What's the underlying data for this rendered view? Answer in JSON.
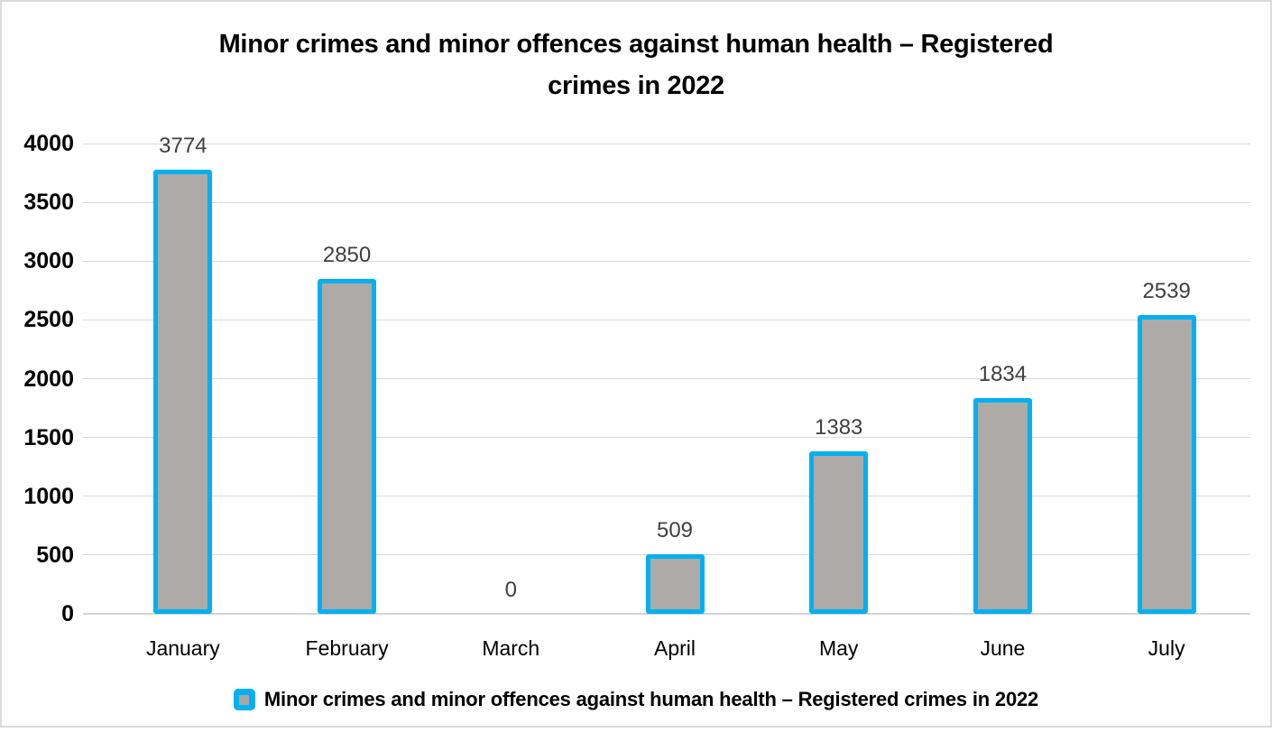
{
  "chart": {
    "title": "Minor crimes and minor offences against human health – Registered crimes in 2022",
    "title_lines": [
      "Minor crimes and minor offences against human health – Registered",
      "crimes in 2022"
    ],
    "legend_label": "Minor crimes and minor offences against human health – Registered crimes in 2022"
  },
  "chart_data": {
    "type": "bar",
    "title": "Minor crimes and minor offences against human health – Registered crimes in 2022",
    "categories": [
      "January",
      "February",
      "March",
      "April",
      "May",
      "June",
      "July"
    ],
    "values": [
      3774,
      2850,
      0,
      509,
      1383,
      1834,
      2539
    ],
    "series": [
      {
        "name": "Minor crimes and minor offences against human health – Registered crimes in 2022",
        "values": [
          3774,
          2850,
          0,
          509,
          1383,
          1834,
          2539
        ]
      }
    ],
    "data_labels": [
      "3774",
      "2850",
      "0",
      "509",
      "1383",
      "1834",
      "2539"
    ],
    "xlabel": "",
    "ylabel": "",
    "ylim": [
      0,
      4000
    ],
    "yticks": [
      0,
      500,
      1000,
      1500,
      2000,
      2500,
      3000,
      3500,
      4000
    ],
    "grid": true,
    "legend_position": "bottom",
    "colors": {
      "bar_fill": "#ADAAA7",
      "bar_border": "#00B0F0",
      "gridline": "#D9D9D9",
      "axis_line": "#D5D5D5",
      "data_label": "#404040",
      "text": "#000000",
      "chart_border": "#DBDBDB"
    }
  }
}
